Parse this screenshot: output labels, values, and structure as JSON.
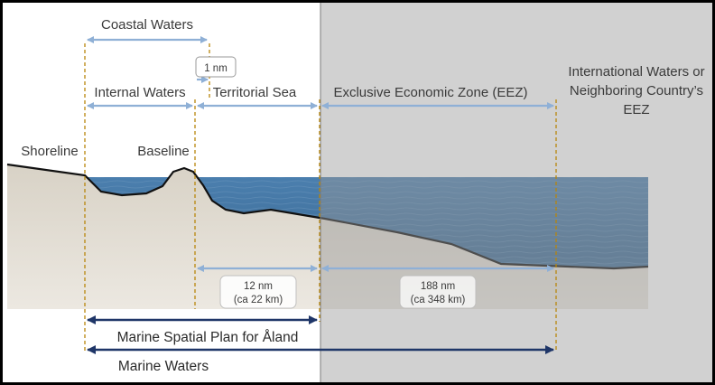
{
  "labels": {
    "coastal_waters": "Coastal Waters",
    "one_nm": "1 nm",
    "internal_waters": "Internal Waters",
    "territorial_sea": "Territorial Sea",
    "eez": "Exclusive Economic Zone (EEZ)",
    "intl_line1": "International Waters or",
    "intl_line2": "Neighboring Country’s",
    "intl_line3": "EEZ",
    "shoreline": "Shoreline",
    "baseline": "Baseline",
    "dist12_line1": "12 nm",
    "dist12_line2": "(ca 22 km)",
    "dist188_line1": "188 nm",
    "dist188_line2": "(ca 348 km)",
    "msp": "Marine Spatial Plan for Åland",
    "marine_waters": "Marine Waters"
  },
  "colors": {
    "frame": "#000000",
    "gray_zone": "#cfcfcf",
    "sea": "#3f6f9a",
    "sand": "#e2ddd3",
    "light_arrow": "#8fb0d6",
    "dark_arrow": "#1f3668",
    "boundary_dash": "#b8860b"
  }
}
